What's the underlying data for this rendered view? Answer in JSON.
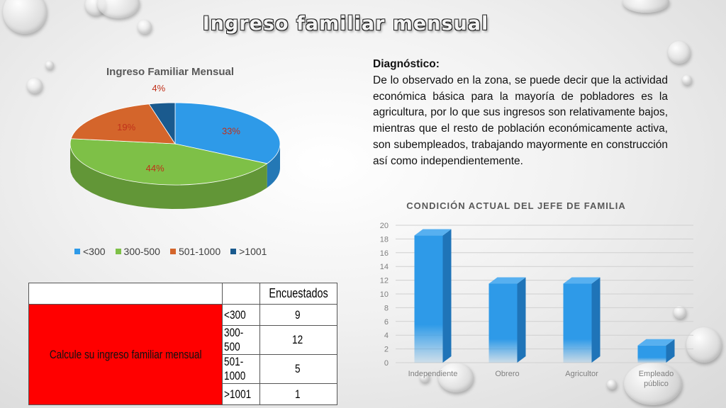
{
  "slide": {
    "title": "Ingreso familiar mensual"
  },
  "colors": {
    "blue": "#2e9ae8",
    "green": "#7ec047",
    "orange": "#d4652b",
    "navy": "#1a5a8e",
    "table_red": "#ff0000"
  },
  "chart_data": [
    {
      "type": "pie",
      "title": "Ingreso Familiar Mensual",
      "categories": [
        "<300",
        "300-500",
        "501-1000",
        ">1001"
      ],
      "values": [
        33,
        44,
        19,
        4
      ],
      "labels": [
        "33%",
        "44%",
        "19%",
        "4%"
      ],
      "legend": "bottom"
    },
    {
      "type": "bar",
      "title": "CONDICIÓN ACTUAL DEL JEFE DE FAMILIA",
      "categories": [
        "Independiente",
        "Obrero",
        "Agricultor",
        "Empleado público"
      ],
      "values": [
        18.5,
        11.5,
        11.5,
        2.5
      ],
      "ylim": [
        0,
        20
      ],
      "yticks": [
        "0",
        "2",
        "4",
        "6",
        "8",
        "10",
        "12",
        "14",
        "16",
        "18",
        "20"
      ],
      "grid": true
    }
  ],
  "diagnosis": {
    "heading": "Diagnóstico:",
    "body": "De lo observado en la zona, se puede decir que la actividad económica básica para la mayoría de pobladores es la agricultura, por lo que sus ingresos son relativamente bajos, mientras que el resto de población económicamente activa, son subempleados, trabajando mayormente en construcción así como independientemente."
  },
  "table": {
    "header": "Encuestados",
    "row_label": "Calcule su ingreso familiar mensual",
    "rows": [
      {
        "range": "<300",
        "count": "9"
      },
      {
        "range": "300-500",
        "count": "12"
      },
      {
        "range": "501-1000",
        "count": "5"
      },
      {
        "range": ">1001",
        "count": "1"
      }
    ]
  }
}
